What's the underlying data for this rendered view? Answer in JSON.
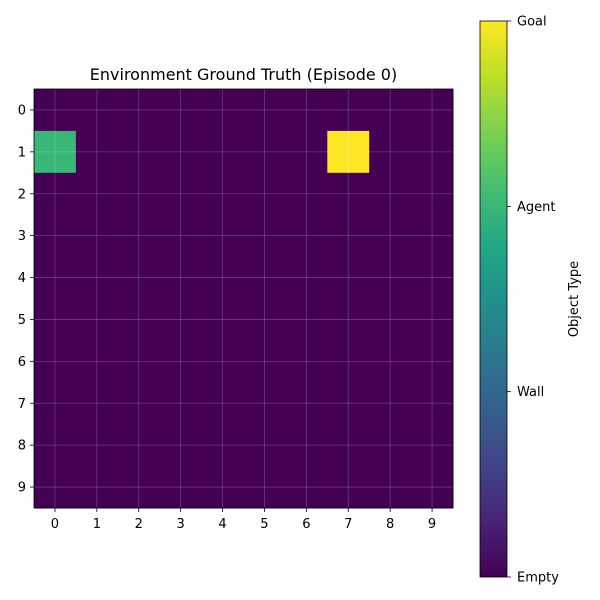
{
  "chart_data": {
    "type": "heatmap",
    "title": "Environment Ground Truth (Episode 0)",
    "x_ticks": [
      "0",
      "1",
      "2",
      "3",
      "4",
      "5",
      "6",
      "7",
      "8",
      "9"
    ],
    "y_ticks": [
      "0",
      "1",
      "2",
      "3",
      "4",
      "5",
      "6",
      "7",
      "8",
      "9"
    ],
    "grid": true,
    "rows": 10,
    "cols": 10,
    "values": [
      [
        0,
        0,
        0,
        0,
        0,
        0,
        0,
        0,
        0,
        0
      ],
      [
        2,
        0,
        0,
        0,
        0,
        0,
        0,
        3,
        0,
        0
      ],
      [
        0,
        0,
        0,
        0,
        0,
        0,
        0,
        0,
        0,
        0
      ],
      [
        0,
        0,
        0,
        0,
        0,
        0,
        0,
        0,
        0,
        0
      ],
      [
        0,
        0,
        0,
        0,
        0,
        0,
        0,
        0,
        0,
        0
      ],
      [
        0,
        0,
        0,
        0,
        0,
        0,
        0,
        0,
        0,
        0
      ],
      [
        0,
        0,
        0,
        0,
        0,
        0,
        0,
        0,
        0,
        0
      ],
      [
        0,
        0,
        0,
        0,
        0,
        0,
        0,
        0,
        0,
        0
      ],
      [
        0,
        0,
        0,
        0,
        0,
        0,
        0,
        0,
        0,
        0
      ],
      [
        0,
        0,
        0,
        0,
        0,
        0,
        0,
        0,
        0,
        0
      ]
    ],
    "value_range": [
      0,
      3
    ],
    "colormap": "viridis",
    "category_colors": {
      "Empty": "#440154",
      "Wall": "#31688e",
      "Agent": "#21a386",
      "Goal": "#fde725"
    },
    "colorbar": {
      "label": "Object Type",
      "ticks": [
        {
          "label": "Empty",
          "value": 0
        },
        {
          "label": "Wall",
          "value": 1
        },
        {
          "label": "Agent",
          "value": 2
        },
        {
          "label": "Goal",
          "value": 3
        }
      ]
    }
  }
}
